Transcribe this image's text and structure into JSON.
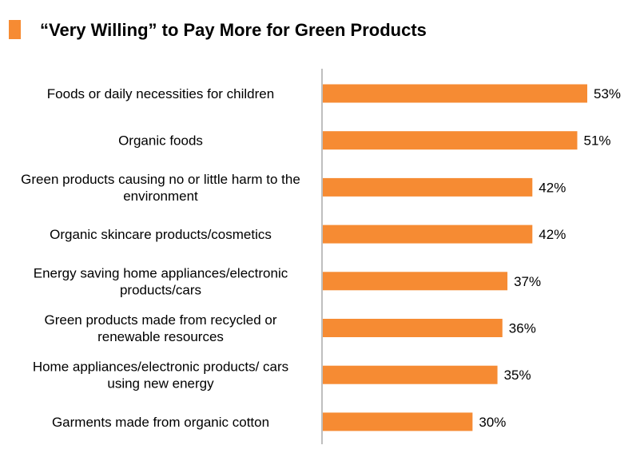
{
  "colors": {
    "accent": "#f68b33",
    "axis": "#7f7f7f"
  },
  "chart_data": {
    "type": "bar",
    "orientation": "horizontal",
    "title": "“Very Willing” to Pay More for Green Products",
    "categories": [
      "Foods or daily necessities for children",
      "Organic foods",
      "Green products causing no or little harm to the environment",
      "Organic skincare products/cosmetics",
      "Energy saving home appliances/electronic products/cars",
      "Green products made from recycled or renewable resources",
      "Home appliances/electronic products/ cars using new energy",
      "Garments made from organic cotton"
    ],
    "category_lines": [
      [
        "Foods or daily necessities for children"
      ],
      [
        "Organic foods"
      ],
      [
        "Green products causing no or little harm to the",
        "environment"
      ],
      [
        "Organic skincare products/cosmetics"
      ],
      [
        "Energy saving home appliances/electronic",
        "products/cars"
      ],
      [
        "Green products made from recycled or",
        "renewable resources"
      ],
      [
        "Home appliances/electronic products/ cars",
        "using new energy"
      ],
      [
        "Garments made from organic cotton"
      ]
    ],
    "values": [
      53,
      51,
      42,
      42,
      37,
      36,
      35,
      30
    ],
    "value_labels": [
      "53%",
      "51%",
      "42%",
      "42%",
      "37%",
      "36%",
      "35%",
      "30%"
    ],
    "unit": "%",
    "xlim": [
      0,
      53
    ],
    "grid": false,
    "legend": "none"
  }
}
